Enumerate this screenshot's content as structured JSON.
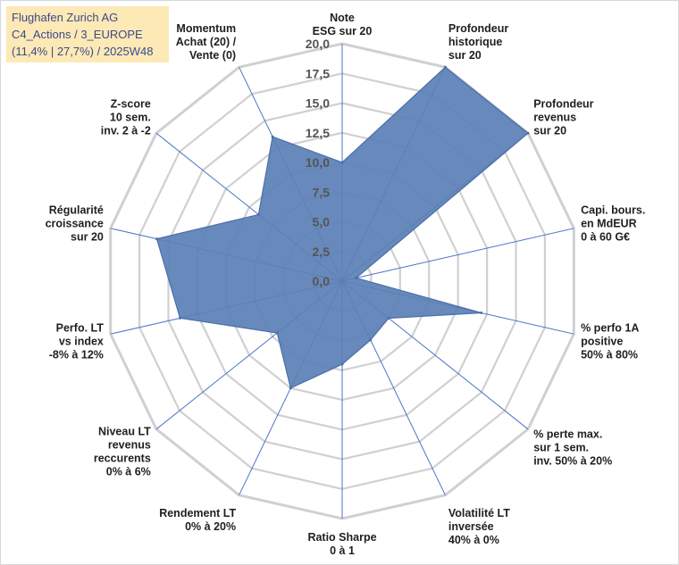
{
  "title_box": {
    "line1": "Flughafen Zurich AG",
    "line2": "C4_Actions / 3_EUROPE",
    "line3": "(11,4% | 27,7%) / 2025W48"
  },
  "chart_data": {
    "type": "radar",
    "axis_min": 0,
    "axis_max": 20,
    "tick_step": 2.5,
    "tick_labels": [
      "0,0",
      "2,5",
      "5,0",
      "7,5",
      "10,0",
      "12,5",
      "15,0",
      "17,5",
      "20,0"
    ],
    "axes": [
      {
        "label": [
          "Note",
          "ESG sur 20"
        ],
        "value": 10
      },
      {
        "label": [
          "Profondeur",
          "historique",
          "sur 20"
        ],
        "value": 20
      },
      {
        "label": [
          "Profondeur",
          "revenus",
          "sur 20"
        ],
        "value": 20
      },
      {
        "label": [
          "Capi. bours.",
          "en MdEUR",
          "0 à 60 G€"
        ],
        "value": 1.2
      },
      {
        "label": [
          "% perfo 1A",
          "positive",
          "50% à 80%"
        ],
        "value": 12
      },
      {
        "label": [
          "% perte max.",
          "sur 1 sem.",
          "inv. 50% à 20%"
        ],
        "value": 5
      },
      {
        "label": [
          "Volatilité LT",
          "inversée",
          "40% à 0%"
        ],
        "value": 5.5
      },
      {
        "label": [
          "Ratio Sharpe",
          "0 à 1"
        ],
        "value": 7
      },
      {
        "label": [
          "Rendement LT",
          "0% à 20%"
        ],
        "value": 10
      },
      {
        "label": [
          "Niveau LT",
          "revenus",
          "reccurents",
          "0% à 6%"
        ],
        "value": 7
      },
      {
        "label": [
          "Perfo. LT",
          "vs index",
          "-8% à 12%"
        ],
        "value": 14
      },
      {
        "label": [
          "Régularité",
          "croissance",
          "sur 20"
        ],
        "value": 16
      },
      {
        "label": [
          "Z-score",
          "10 sem.",
          "inv. 2 à -2"
        ],
        "value": 9
      },
      {
        "label": [
          "Momentum",
          "Achat (20) /",
          "Vente (0)"
        ],
        "value": 13.5
      }
    ],
    "colors": {
      "fill": "#5b7fb5",
      "stroke": "#4a6fa8",
      "grid": "#d0d0d0",
      "spoke": "#4a76c4"
    }
  }
}
